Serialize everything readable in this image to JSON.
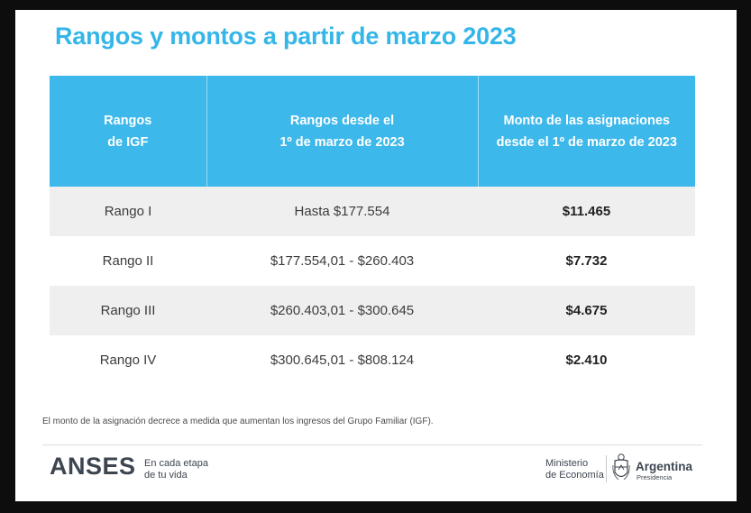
{
  "title": "Rangos y montos a partir de marzo 2023",
  "table": {
    "headers": [
      [
        "Rangos",
        "de IGF"
      ],
      [
        "Rangos desde el",
        "1º de marzo de 2023"
      ],
      [
        "Monto de las asignaciones",
        "desde el 1º de marzo de 2023"
      ]
    ],
    "rows": [
      {
        "range": "Rango I",
        "income": "Hasta $177.554",
        "amount": "$11.465"
      },
      {
        "range": "Rango II",
        "income": "$177.554,01 - $260.403",
        "amount": "$7.732"
      },
      {
        "range": "Rango III",
        "income": "$260.403,01 - $300.645",
        "amount": "$4.675"
      },
      {
        "range": "Rango IV",
        "income": "$300.645,01 - $808.124",
        "amount": "$2.410"
      }
    ]
  },
  "footnote": "El monto de la asignación decrece a medida que aumentan los ingresos del Grupo Familiar (IGF).",
  "footer": {
    "anses_logo": "ANSES",
    "anses_tagline": [
      "En cada etapa",
      "de tu vida"
    ],
    "ministerio": [
      "Ministerio",
      "de Economía"
    ],
    "argentina": "Argentina",
    "presidencia": "Presidencia",
    "shield_icon": "argentina-coat-of-arms-icon"
  },
  "colors": {
    "accent": "#35b6e8",
    "header_bg": "#3db8ea",
    "row_alt": "#efefef",
    "page_bg": "#0d0d0d"
  }
}
